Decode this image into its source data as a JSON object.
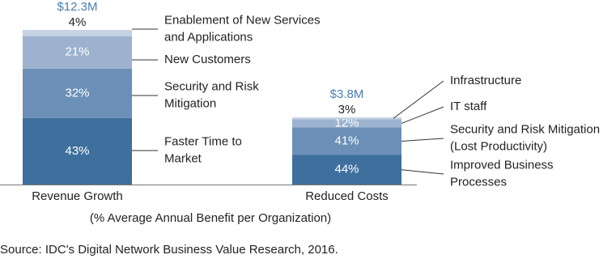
{
  "chart_data": {
    "type": "stacked_bar",
    "categories": [
      "Revenue Growth",
      "Reduced Costs"
    ],
    "total_labels": [
      "$12.3M",
      "$3.8M"
    ],
    "bars": [
      {
        "names": [
          [
            "Faster Time to",
            "Market"
          ],
          [
            "Security and Risk",
            "Mitigation"
          ],
          [
            "New Customers"
          ],
          [
            "Enablement of New Services",
            "and Applications"
          ]
        ],
        "values": [
          43,
          32,
          21,
          4
        ],
        "value_labels": [
          "43%",
          "32%",
          "21%",
          "4%"
        ],
        "colors": [
          "#3e6f9d",
          "#6b8fb6",
          "#9cb2cf",
          "#c6d3e4"
        ]
      },
      {
        "names": [
          [
            "Improved Business",
            "Processes"
          ],
          [
            "Security and Risk Mitigation",
            "(Lost Productivity)"
          ],
          [
            "IT staff"
          ],
          [
            "Infrastructure"
          ]
        ],
        "values": [
          44,
          41,
          12,
          3
        ],
        "value_labels": [
          "44%",
          "41%",
          "12%",
          "3%"
        ],
        "colors": [
          "#3e6f9d",
          "#6b8fb6",
          "#9cb2cf",
          "#c6d3e4"
        ]
      }
    ],
    "note": "(% Average Annual Benefit per Organization)",
    "source": "Source: IDC's Digital Network Business Value Research, 2016."
  }
}
